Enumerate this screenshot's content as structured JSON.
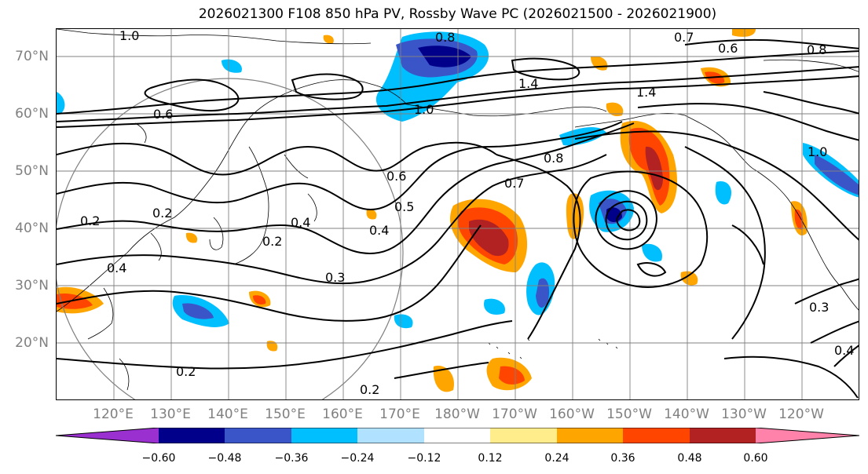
{
  "title": "2026021300 F108 850 hPa PV, Rossby Wave PC (2026021500 - 2026021900)",
  "lat_labels": [
    "70°N",
    "60°N",
    "50°N",
    "40°N",
    "30°N",
    "20°N"
  ],
  "lon_labels": [
    "120°E",
    "130°E",
    "140°E",
    "150°E",
    "160°E",
    "170°E",
    "180°W",
    "170°W",
    "160°W",
    "150°W",
    "140°W",
    "130°W",
    "120°W"
  ],
  "contour_labels": [
    "1.0",
    "0.8",
    "0.7",
    "0.6",
    "0.8",
    "1.4",
    "1.4",
    "1.0",
    "0.6",
    "0.2",
    "0.2",
    "0.6",
    "0.5",
    "0.4",
    "0.7",
    "0.8",
    "1.0",
    "0.4",
    "0.2",
    "0.4",
    "0.3",
    "0.2",
    "0.2",
    "0.3",
    "0.4"
  ],
  "colorbar": {
    "ticks": [
      "−0.60",
      "−0.48",
      "−0.36",
      "−0.24",
      "−0.12",
      "0.12",
      "0.24",
      "0.36",
      "0.48",
      "0.60"
    ],
    "colors": [
      "#9b30d0",
      "#00008b",
      "#3a55c8",
      "#00bfff",
      "#b0e2ff",
      "#ffffff",
      "#ffec8b",
      "#ffa500",
      "#ff4500",
      "#b22222",
      "#ff82ab"
    ]
  },
  "colors": {
    "land_outline": "#000000",
    "grid": "#808080",
    "contour": "#000000",
    "circle": "#808080"
  }
}
